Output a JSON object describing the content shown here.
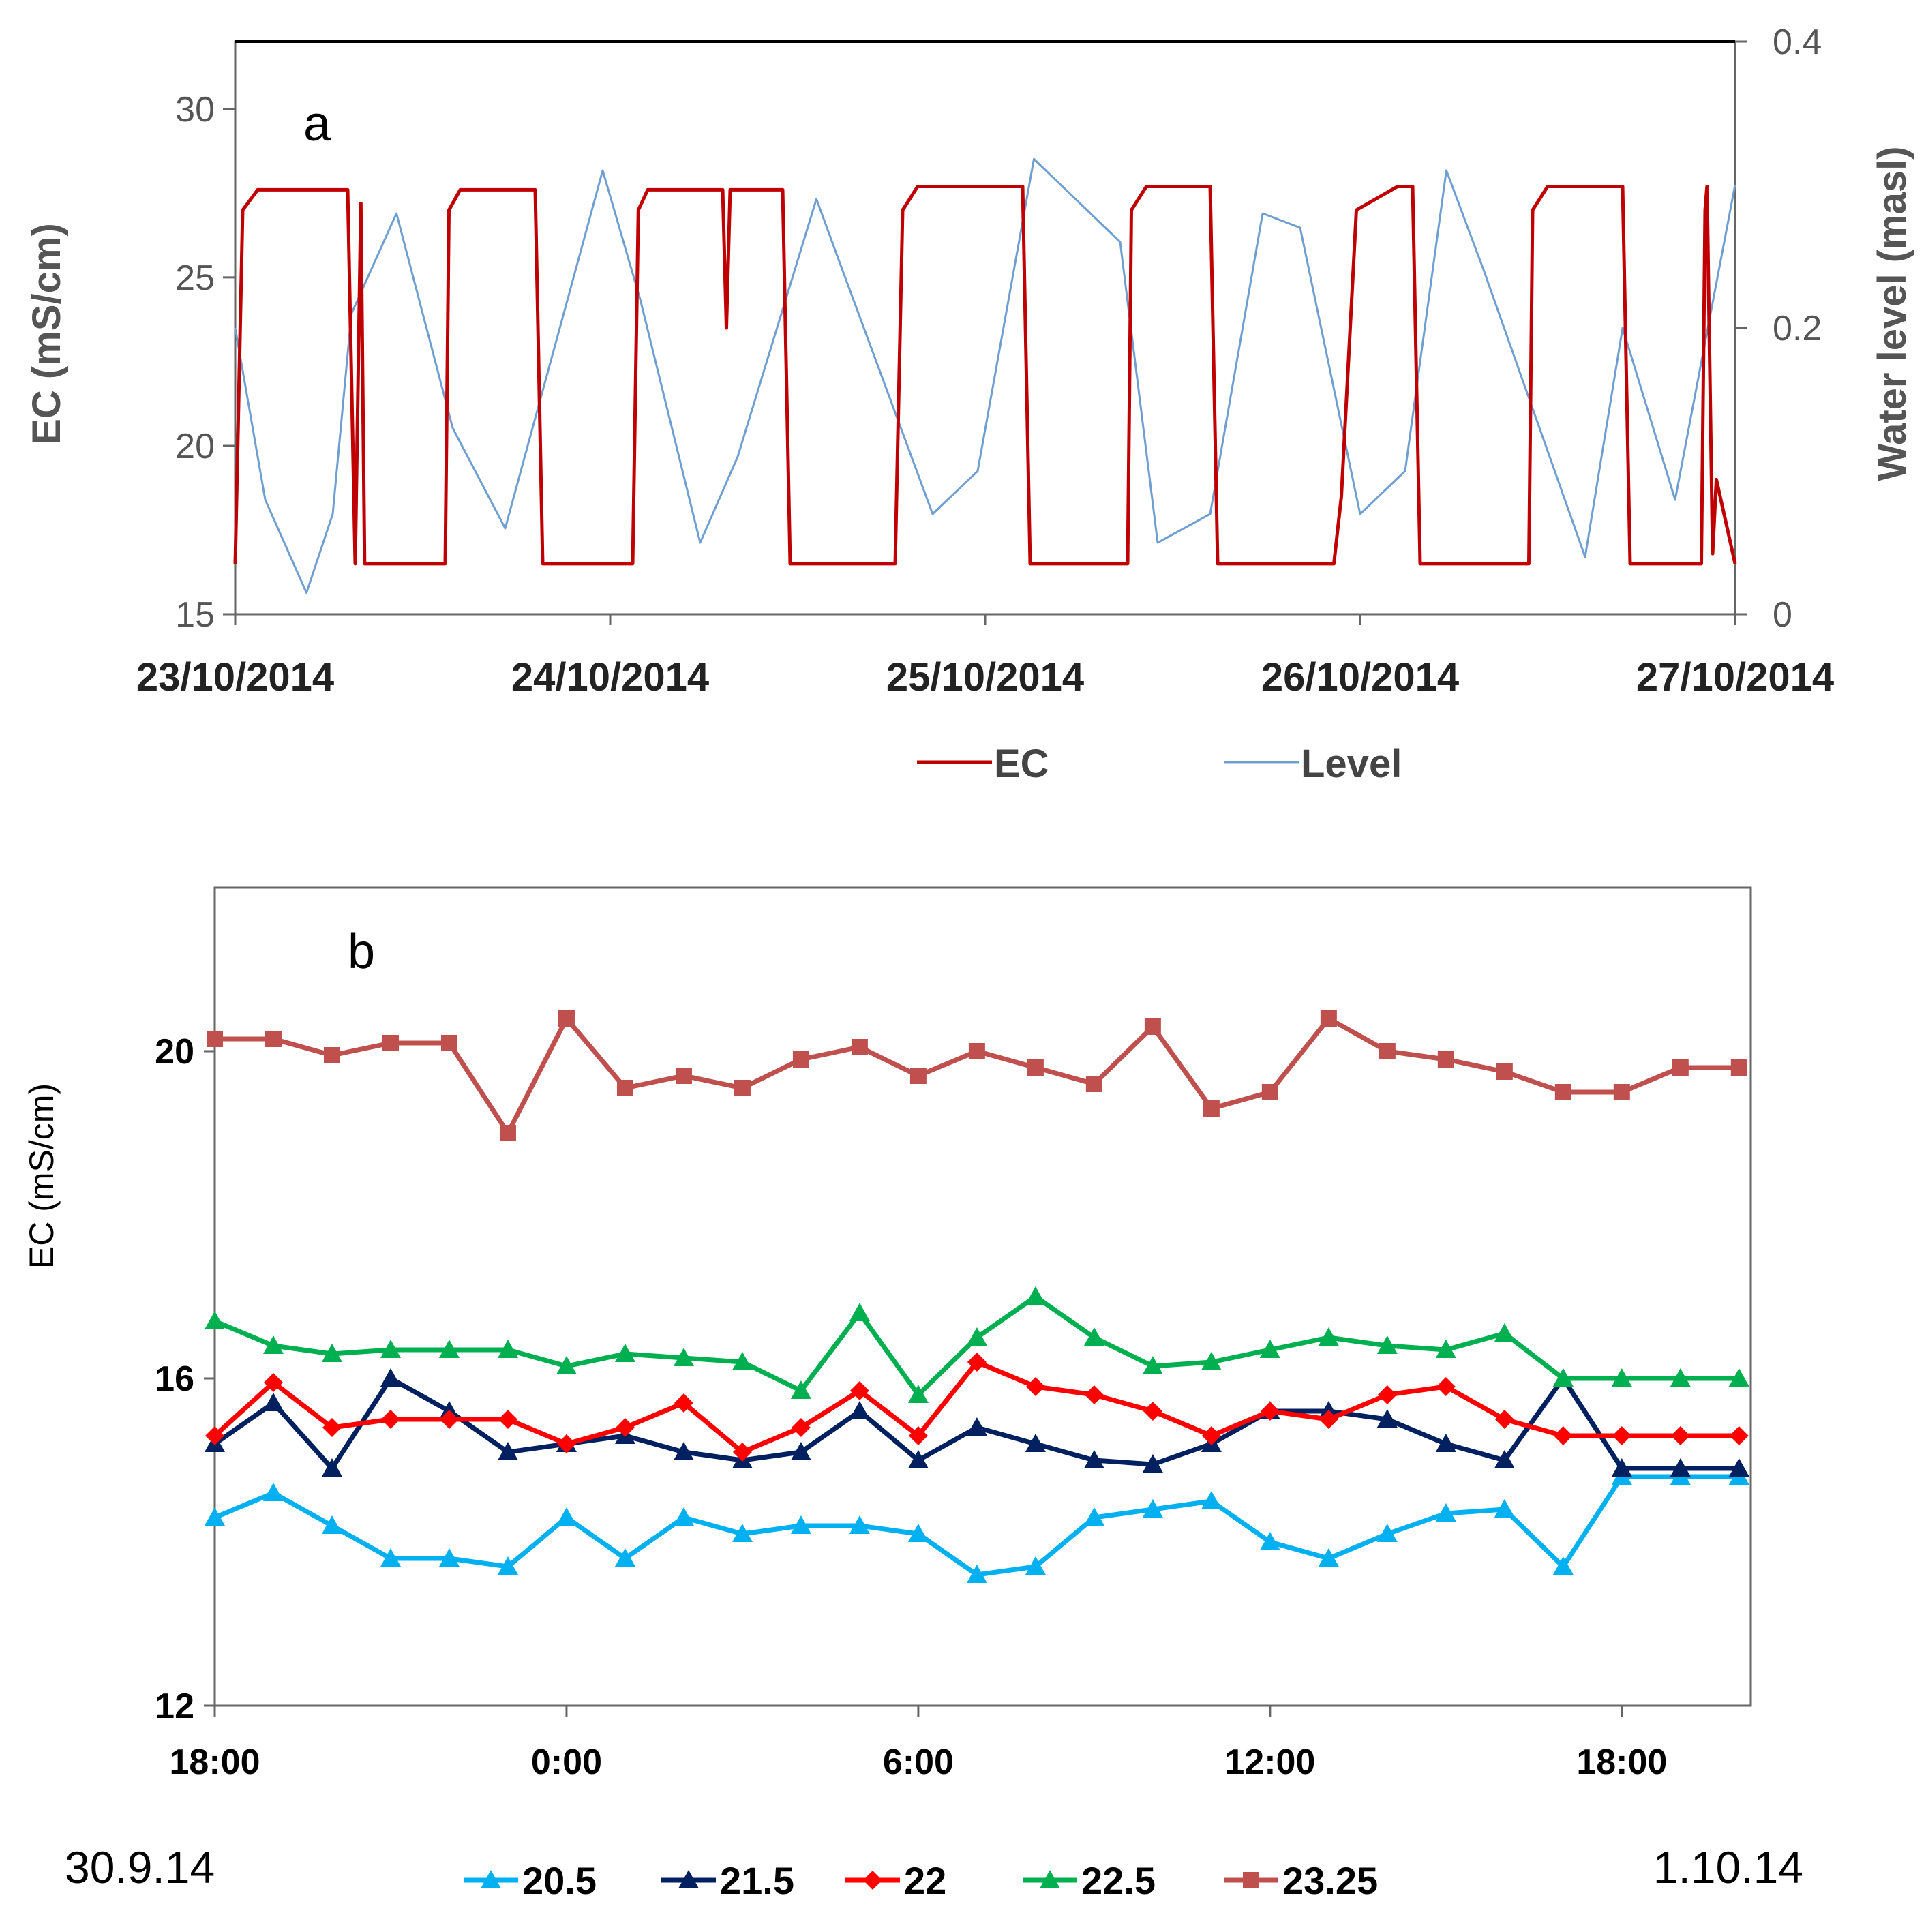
{
  "chart_data": [
    {
      "type": "line",
      "panel_label": "a",
      "x_tick_labels": [
        "23/10/2014",
        "24/10/2014",
        "25/10/2014",
        "26/10/2014",
        "27/10/2014"
      ],
      "xlim": [
        0,
        4
      ],
      "ylabel": "EC (mS/cm)",
      "ylim": [
        15,
        32
      ],
      "y_ticks": [
        15,
        20,
        25,
        30
      ],
      "y_tick_labels": [
        "15",
        "20",
        "25",
        "30"
      ],
      "y2label": "Water level (masl)",
      "y2lim": [
        0,
        0.4
      ],
      "y2_ticks": [
        0,
        0.2,
        0.4
      ],
      "y2_tick_labels": [
        "0",
        "0.2",
        "0.4"
      ],
      "legend_position": "bottom",
      "series": [
        {
          "name": "EC",
          "axis": "left",
          "color": "#c00000",
          "x": [
            0,
            0.02,
            0.06,
            0.3,
            0.32,
            0.335,
            0.345,
            0.355,
            0.56,
            0.57,
            0.6,
            0.8,
            0.82,
            0.86,
            1.06,
            1.075,
            1.1,
            1.3,
            1.31,
            1.32,
            1.4,
            1.46,
            1.48,
            1.53,
            1.76,
            1.78,
            1.82,
            2.1,
            2.12,
            2.16,
            2.38,
            2.39,
            2.43,
            2.6,
            2.62,
            2.66,
            2.93,
            2.95,
            2.99,
            3.1,
            3.11,
            3.14,
            3.16,
            3.21,
            3.45,
            3.46,
            3.5,
            3.7,
            3.72,
            3.76,
            3.91,
            3.92,
            3.925,
            3.94,
            3.95,
            4.0
          ],
          "values": [
            16.5,
            27.0,
            27.6,
            27.6,
            16.5,
            27.2,
            16.5,
            16.5,
            16.5,
            27.0,
            27.6,
            27.6,
            16.5,
            16.5,
            16.5,
            27.0,
            27.6,
            27.6,
            23.5,
            27.6,
            27.6,
            27.6,
            16.5,
            16.5,
            16.5,
            27.0,
            27.7,
            27.7,
            16.5,
            16.5,
            16.5,
            27.0,
            27.7,
            27.7,
            16.5,
            16.5,
            16.5,
            18.5,
            27.0,
            27.7,
            27.7,
            27.7,
            16.5,
            16.5,
            16.5,
            27.0,
            27.7,
            27.7,
            16.5,
            16.5,
            16.5,
            27.0,
            27.7,
            16.8,
            19.0,
            16.5
          ]
        },
        {
          "name": "Level",
          "axis": "right",
          "color": "#6f9fd0",
          "x": [
            0,
            0.08,
            0.19,
            0.26,
            0.31,
            0.43,
            0.58,
            0.72,
            0.98,
            1.08,
            1.24,
            1.34,
            1.55,
            1.62,
            1.86,
            1.98,
            2.13,
            2.36,
            2.46,
            2.6,
            2.74,
            2.84,
            3.0,
            3.12,
            3.23,
            3.33,
            3.6,
            3.7,
            3.84,
            4.0
          ],
          "values": [
            0.2,
            0.08,
            0.015,
            0.07,
            0.21,
            0.28,
            0.13,
            0.06,
            0.31,
            0.22,
            0.05,
            0.11,
            0.29,
            0.24,
            0.07,
            0.1,
            0.318,
            0.26,
            0.05,
            0.07,
            0.28,
            0.27,
            0.07,
            0.1,
            0.31,
            0.24,
            0.04,
            0.2,
            0.08,
            0.3
          ]
        }
      ]
    },
    {
      "type": "line",
      "panel_label": "b",
      "x_hours": [
        18,
        19,
        20,
        21,
        22,
        23,
        24,
        25,
        26,
        27,
        28,
        29,
        30,
        31,
        32,
        33,
        34,
        35,
        36,
        37,
        38,
        39,
        40,
        41,
        42,
        43,
        44
      ],
      "xlim": [
        18,
        44.2
      ],
      "x_ticks": [
        18,
        24,
        30,
        36,
        42
      ],
      "x_tick_labels": [
        "18:00",
        "0:00",
        "6:00",
        "12:00",
        "18:00"
      ],
      "date_left": "30.9.14",
      "date_right": "1.10.14",
      "ylabel": "EC (mS/cm)",
      "ylim": [
        12,
        22
      ],
      "y_ticks": [
        12,
        16,
        20
      ],
      "y_tick_labels": [
        "12",
        "16",
        "20"
      ],
      "legend_position": "bottom",
      "series": [
        {
          "name": "20.5",
          "marker": "triangle",
          "color": "#00b0f0",
          "values": [
            14.3,
            14.6,
            14.2,
            13.8,
            13.8,
            13.7,
            14.3,
            13.8,
            14.3,
            14.1,
            14.2,
            14.2,
            14.1,
            13.6,
            13.7,
            14.3,
            14.4,
            14.5,
            14.0,
            13.8,
            14.1,
            14.35,
            14.4,
            13.7,
            14.8,
            14.8,
            14.8
          ]
        },
        {
          "name": "21.5",
          "marker": "triangle",
          "color": "#002060",
          "values": [
            15.2,
            15.7,
            14.9,
            16.0,
            15.6,
            15.1,
            15.2,
            15.3,
            15.1,
            15.0,
            15.1,
            15.6,
            15.0,
            15.4,
            15.2,
            15.0,
            14.95,
            15.2,
            15.6,
            15.6,
            15.5,
            15.2,
            15.0,
            16.0,
            14.9,
            14.9,
            14.9
          ]
        },
        {
          "name": "22",
          "marker": "diamond",
          "color": "#ff0000",
          "values": [
            15.3,
            15.95,
            15.4,
            15.5,
            15.5,
            15.5,
            15.2,
            15.4,
            15.7,
            15.1,
            15.4,
            15.85,
            15.3,
            16.2,
            15.9,
            15.8,
            15.6,
            15.3,
            15.6,
            15.5,
            15.8,
            15.9,
            15.5,
            15.3,
            15.3,
            15.3,
            15.3
          ]
        },
        {
          "name": "22.5",
          "marker": "triangle",
          "color": "#00b050",
          "values": [
            16.7,
            16.4,
            16.3,
            16.35,
            16.35,
            16.35,
            16.15,
            16.3,
            16.25,
            16.2,
            15.85,
            16.8,
            15.8,
            16.5,
            17.0,
            16.5,
            16.15,
            16.2,
            16.35,
            16.5,
            16.4,
            16.35,
            16.55,
            16.0,
            16.0,
            16.0,
            16.0
          ]
        },
        {
          "name": "23.25",
          "marker": "square",
          "color": "#c0504d",
          "values": [
            20.15,
            20.15,
            19.95,
            20.1,
            20.1,
            19.0,
            20.4,
            19.55,
            19.7,
            19.55,
            19.9,
            20.05,
            19.7,
            20.0,
            19.8,
            19.6,
            20.3,
            19.3,
            19.5,
            20.4,
            20.0,
            19.9,
            19.75,
            19.5,
            19.5,
            19.8,
            19.8
          ]
        }
      ]
    }
  ]
}
